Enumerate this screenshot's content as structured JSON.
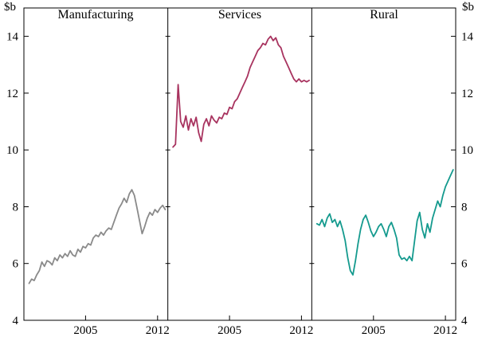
{
  "chart_data": {
    "type": "line",
    "title": "",
    "unit": "$b",
    "grid": false,
    "legend": "none",
    "x_axis": {
      "range": [
        1999,
        2013
      ],
      "start": 1999.5,
      "step": 0.25,
      "ticks": [
        {
          "year": 2005,
          "label": "2005"
        },
        {
          "year": 2012,
          "label": "2012"
        }
      ]
    },
    "y_axis": {
      "min": 4,
      "max": 14,
      "ticks": [
        14,
        12,
        10,
        8,
        6,
        4
      ]
    },
    "panels": [
      {
        "title": "Manufacturing",
        "color": "#8a8a8a",
        "values": [
          5.3,
          5.45,
          5.4,
          5.6,
          5.75,
          6.05,
          5.9,
          6.1,
          6.05,
          5.95,
          6.2,
          6.1,
          6.3,
          6.2,
          6.35,
          6.25,
          6.45,
          6.3,
          6.25,
          6.5,
          6.4,
          6.6,
          6.55,
          6.7,
          6.65,
          6.9,
          7.0,
          6.95,
          7.1,
          7.0,
          7.15,
          7.25,
          7.2,
          7.45,
          7.7,
          7.95,
          8.1,
          8.3,
          8.15,
          8.45,
          8.6,
          8.4,
          7.95,
          7.5,
          7.05,
          7.3,
          7.6,
          7.8,
          7.7,
          7.9,
          7.8,
          7.95,
          8.05,
          7.9
        ]
      },
      {
        "title": "Services",
        "color": "#a8335f",
        "values": [
          10.1,
          10.2,
          12.3,
          11.0,
          10.8,
          11.2,
          10.7,
          11.1,
          10.85,
          11.15,
          10.6,
          10.3,
          10.9,
          11.1,
          10.85,
          11.2,
          11.05,
          10.95,
          11.15,
          11.1,
          11.3,
          11.25,
          11.5,
          11.45,
          11.7,
          11.8,
          12.0,
          12.2,
          12.4,
          12.6,
          12.9,
          13.1,
          13.3,
          13.5,
          13.6,
          13.75,
          13.7,
          13.9,
          14.0,
          13.85,
          13.95,
          13.7,
          13.6,
          13.3,
          13.1,
          12.9,
          12.7,
          12.5,
          12.4,
          12.5,
          12.4,
          12.45,
          12.4,
          12.45
        ]
      },
      {
        "title": "Rural",
        "color": "#149a8e",
        "values": [
          7.4,
          7.35,
          7.55,
          7.3,
          7.6,
          7.75,
          7.45,
          7.55,
          7.3,
          7.5,
          7.2,
          6.8,
          6.2,
          5.75,
          5.6,
          6.1,
          6.7,
          7.2,
          7.55,
          7.7,
          7.45,
          7.15,
          6.95,
          7.1,
          7.3,
          7.4,
          7.2,
          6.95,
          7.3,
          7.45,
          7.2,
          6.9,
          6.3,
          6.15,
          6.2,
          6.1,
          6.25,
          6.1,
          6.8,
          7.5,
          7.8,
          7.2,
          6.9,
          7.4,
          7.1,
          7.6,
          7.9,
          8.2,
          8.0,
          8.4,
          8.7,
          8.9,
          9.1,
          9.3
        ]
      }
    ]
  }
}
